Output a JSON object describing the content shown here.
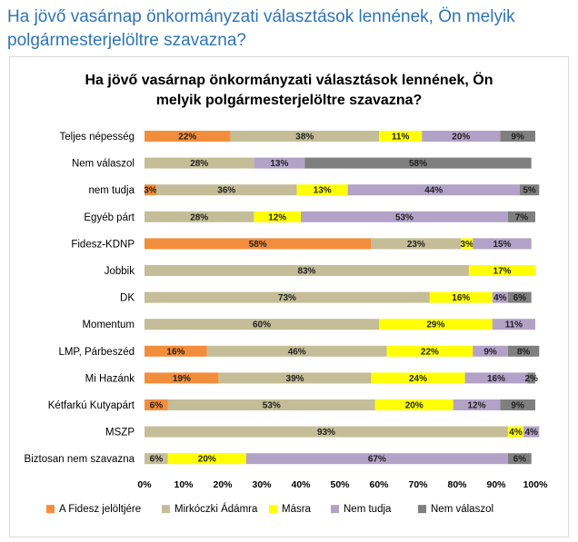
{
  "heading": {
    "line1": "Ha jövő vasárnap önkormányzati választások lennének, Ön melyik",
    "line2": "polgármesterjelöltre szavazna?"
  },
  "colors": {
    "fidesz": "#f28e3b",
    "mirkoczki": "#c4bd97",
    "masra": "#ffff00",
    "nem_tudja": "#b3a2c7",
    "nem_valaszol": "#7f7f7f"
  },
  "chart_data": {
    "type": "bar",
    "orientation": "horizontal",
    "stacked": "percent",
    "title": "Ha jövő vasárnap önkormányzati választások lennének, Ön melyik polgármesterjelöltre szavazna?",
    "title_lines": [
      "Ha jövő vasárnap önkormányzati választások lennének, Ön",
      "melyik polgármesterjelöltre szavazna?"
    ],
    "categories": [
      "Teljes népesség",
      "Nem válaszol",
      "nem tudja",
      "Egyéb párt",
      "Fidesz-KDNP",
      "Jobbik",
      "DK",
      "Momentum",
      "LMP, Párbeszéd",
      "Mi Hazánk",
      "Kétfarkú Kutyapárt",
      "MSZP",
      "Biztosan nem szavazna"
    ],
    "series": [
      {
        "name": "A Fidesz jelöltjére",
        "color": "#f28e3b",
        "values": [
          22,
          0,
          3,
          0,
          58,
          0,
          0,
          0,
          16,
          19,
          6,
          0,
          0
        ]
      },
      {
        "name": "Mirkóczki Ádámra",
        "color": "#c4bd97",
        "values": [
          38,
          28,
          36,
          28,
          23,
          83,
          73,
          60,
          46,
          39,
          53,
          93,
          6
        ]
      },
      {
        "name": "Másra",
        "color": "#ffff00",
        "values": [
          11,
          0,
          13,
          12,
          3,
          17,
          16,
          29,
          22,
          24,
          20,
          4,
          20
        ]
      },
      {
        "name": "Nem tudja",
        "color": "#b3a2c7",
        "values": [
          20,
          13,
          44,
          53,
          15,
          0,
          4,
          11,
          9,
          16,
          12,
          4,
          67
        ]
      },
      {
        "name": "Nem válaszol",
        "color": "#7f7f7f",
        "values": [
          9,
          58,
          5,
          7,
          0,
          0,
          6,
          0,
          8,
          2,
          9,
          0,
          6
        ]
      }
    ],
    "xlim": [
      0,
      100
    ],
    "x_ticks": [
      "0%",
      "10%",
      "20%",
      "30%",
      "40%",
      "50%",
      "60%",
      "70%",
      "80%",
      "90%",
      "100%"
    ],
    "grid": false,
    "legend_position": "bottom"
  }
}
